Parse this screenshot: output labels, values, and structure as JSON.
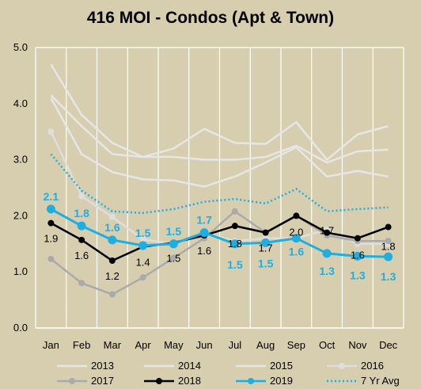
{
  "chart_data": {
    "type": "line",
    "title": "416 MOI - Condos (Apt & Town)",
    "xlabel": "",
    "ylabel": "",
    "ylim": [
      0,
      5
    ],
    "yticks": [
      "0.0",
      "1.0",
      "2.0",
      "3.0",
      "4.0",
      "5.0"
    ],
    "categories": [
      "Jan",
      "Feb",
      "Mar",
      "Apr",
      "May",
      "Jun",
      "Jul",
      "Aug",
      "Sep",
      "Oct",
      "Nov",
      "Dec"
    ],
    "grid": "vertical",
    "legend_position": "bottom",
    "colors": {
      "background": "#d6ceaf",
      "plot_background": "#d6ceaf",
      "grid": "#ffffff",
      "highlight": "#1eaee0",
      "black_series": "#000000"
    },
    "series": [
      {
        "name": "2013",
        "color": "#e6e6e6",
        "style": "solid",
        "marker": false,
        "values": [
          4.7,
          3.8,
          3.3,
          3.05,
          3.2,
          3.55,
          3.3,
          3.28,
          3.67,
          3.0,
          3.45,
          3.6
        ]
      },
      {
        "name": "2014",
        "color": "#e6e6e6",
        "style": "solid",
        "marker": false,
        "values": [
          4.15,
          3.6,
          3.1,
          3.05,
          3.05,
          3.0,
          3.0,
          3.05,
          3.25,
          2.95,
          3.15,
          3.18
        ]
      },
      {
        "name": "2015",
        "color": "#e6e6e6",
        "style": "solid",
        "marker": false,
        "values": [
          4.1,
          3.1,
          2.78,
          2.65,
          2.63,
          2.52,
          2.7,
          2.95,
          3.22,
          2.7,
          2.8,
          2.7
        ]
      },
      {
        "name": "2016",
        "color": "#dedede",
        "style": "solid",
        "marker": true,
        "values": [
          3.5,
          2.35,
          1.98,
          1.58,
          1.5,
          1.7,
          1.55,
          1.6,
          1.6,
          1.75,
          1.5,
          1.5
        ]
      },
      {
        "name": "2017",
        "color": "#aaaaaa",
        "style": "solid",
        "marker": true,
        "values": [
          1.23,
          0.8,
          0.6,
          0.9,
          1.25,
          1.6,
          2.08,
          1.7,
          2.0,
          1.65,
          1.55,
          1.55
        ]
      },
      {
        "name": "2018",
        "color": "#000000",
        "style": "solid",
        "marker": true,
        "values": [
          1.87,
          1.57,
          1.2,
          1.45,
          1.52,
          1.65,
          1.82,
          1.7,
          2.0,
          1.7,
          1.6,
          1.8
        ],
        "labels": [
          "1.9",
          "1.6",
          "1.2",
          "1.4",
          "1.5",
          "1.6",
          "1.8",
          "1.7",
          "2.0",
          "1.7",
          "1.6",
          "1.8"
        ]
      },
      {
        "name": "2019",
        "color": "#1eaee0",
        "style": "solid",
        "marker": true,
        "values": [
          2.12,
          1.82,
          1.57,
          1.47,
          1.5,
          1.7,
          1.5,
          1.52,
          1.6,
          1.33,
          1.28,
          1.27
        ],
        "labels": [
          "2.1",
          "1.8",
          "1.6",
          "1.5",
          "1.5",
          "1.7",
          "1.5",
          "1.5",
          "1.6",
          "1.3",
          "1.3",
          "1.3"
        ]
      },
      {
        "name": "7 Yr Avg",
        "color": "#1eaee0",
        "style": "dotted",
        "marker": false,
        "values": [
          3.1,
          2.45,
          2.08,
          2.05,
          2.12,
          2.25,
          2.3,
          2.22,
          2.48,
          2.08,
          2.12,
          2.15
        ]
      }
    ]
  }
}
